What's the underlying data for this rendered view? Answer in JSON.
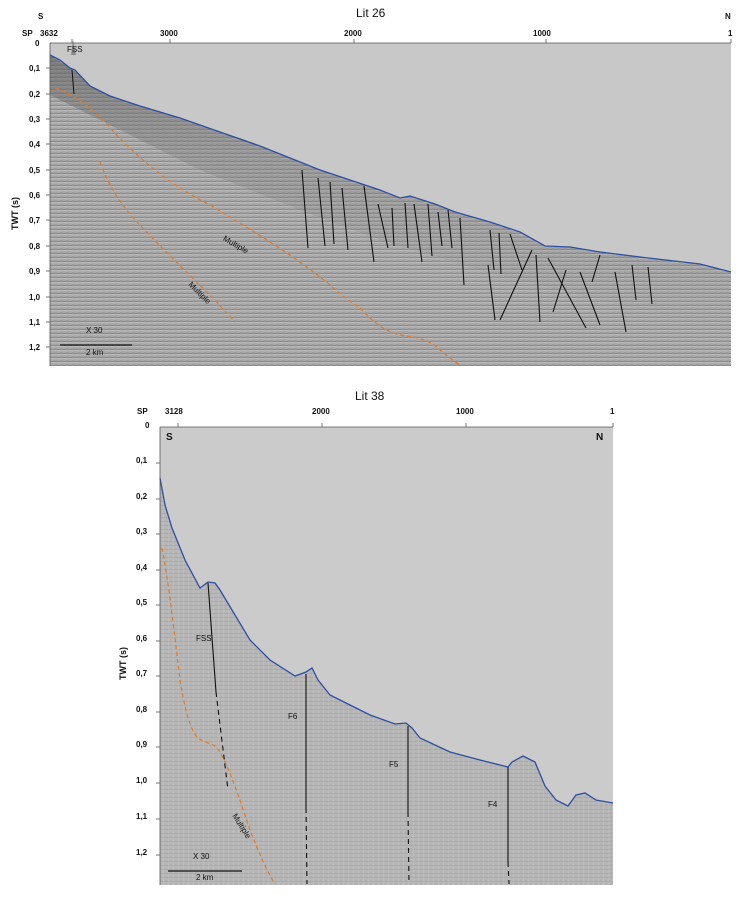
{
  "top": {
    "title": "Lit 26",
    "dir_left": "S",
    "dir_right": "N",
    "sp_label": "SP",
    "sp_ticks": [
      "3632",
      "3000",
      "2000",
      "1000",
      "1"
    ],
    "y_axis_label": "TWT (s)",
    "y_ticks": [
      "0",
      "0,1",
      "0,2",
      "0,3",
      "0,4",
      "0,5",
      "0,6",
      "0,7",
      "0,8",
      "0,9",
      "1,0",
      "1,1",
      "1,2"
    ],
    "annotations": {
      "fss": "FSS",
      "multiple1": "Multiple",
      "multiple2": "Multiple"
    },
    "scale": {
      "exaggeration": "X 30",
      "bar": "2 km"
    }
  },
  "bottom": {
    "title": "Lit 38",
    "dir_left": "S",
    "dir_right": "N",
    "sp_label": "SP",
    "sp_ticks": [
      "3128",
      "2000",
      "1000",
      "1"
    ],
    "y_axis_label": "TWT (s)",
    "y_ticks": [
      "0",
      "0,1",
      "0,2",
      "0,3",
      "0,4",
      "0,5",
      "0,6",
      "0,7",
      "0,8",
      "0,9",
      "1,0",
      "1,1",
      "1,2"
    ],
    "annotations": {
      "fss": "FSS",
      "f6": "F6",
      "f5": "F5",
      "f4": "F4",
      "multiple": "Multiple"
    },
    "scale": {
      "exaggeration": "X 30",
      "bar": "2 km"
    }
  },
  "colors": {
    "seafloor": "#2c4fa0",
    "multiple": "#e07a2a",
    "water": "#c9c9c9",
    "fault": "#111111"
  }
}
